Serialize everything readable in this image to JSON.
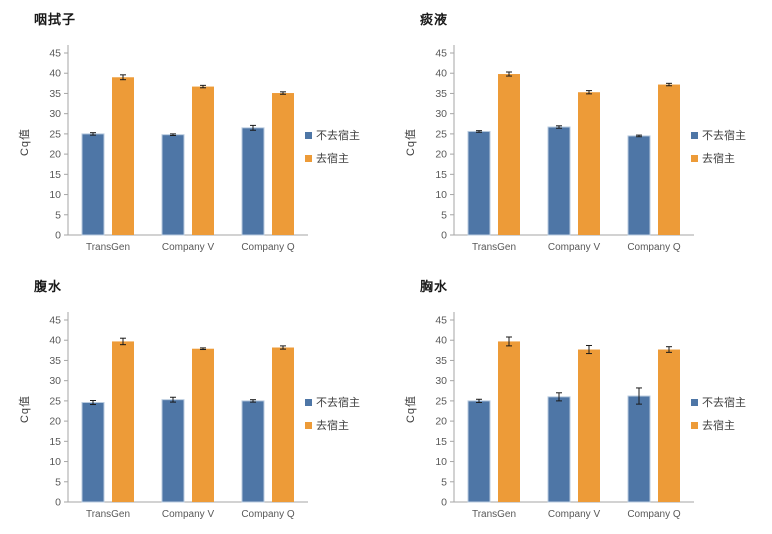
{
  "page": {
    "background": "#ffffff"
  },
  "colors": {
    "series1_fill": "#4E76A6",
    "series1_border": "#B9CBDF",
    "series2_fill": "#ED9B38",
    "axis_line": "#A6A6A6",
    "tick_text": "#595959",
    "category_text": "#595959",
    "title_text": "#1A1A1A",
    "error_bar": "#1A1A1A"
  },
  "chart_data": [
    {
      "type": "bar",
      "title": "咽拭子",
      "ylabel": "Cq值",
      "ylim": [
        0,
        45
      ],
      "ytick_step": 5,
      "grid": false,
      "legend_position": "right",
      "categories": [
        "TransGen",
        "Company V",
        "Company Q"
      ],
      "series": [
        {
          "name": "不去宿主",
          "color": "#4E76A6",
          "values": [
            25.0,
            24.8,
            26.5
          ],
          "errors": [
            0.3,
            0.2,
            0.6
          ]
        },
        {
          "name": "去宿主",
          "color": "#ED9B38",
          "values": [
            39.0,
            36.7,
            35.1
          ],
          "errors": [
            0.6,
            0.3,
            0.3
          ]
        }
      ]
    },
    {
      "type": "bar",
      "title": "痰液",
      "ylabel": "Cq值",
      "ylim": [
        0,
        45
      ],
      "ytick_step": 5,
      "grid": false,
      "legend_position": "right",
      "categories": [
        "TransGen",
        "Company V",
        "Company Q"
      ],
      "series": [
        {
          "name": "不去宿主",
          "color": "#4E76A6",
          "values": [
            25.6,
            26.7,
            24.5
          ],
          "errors": [
            0.2,
            0.3,
            0.2
          ]
        },
        {
          "name": "去宿主",
          "color": "#ED9B38",
          "values": [
            39.8,
            35.3,
            37.2
          ],
          "errors": [
            0.5,
            0.4,
            0.3
          ]
        }
      ]
    },
    {
      "type": "bar",
      "title": "腹水",
      "ylabel": "Cq值",
      "ylim": [
        0,
        45
      ],
      "ytick_step": 5,
      "grid": false,
      "legend_position": "right",
      "categories": [
        "TransGen",
        "Company V",
        "Company Q"
      ],
      "series": [
        {
          "name": "不去宿主",
          "color": "#4E76A6",
          "values": [
            24.6,
            25.3,
            25.0
          ],
          "errors": [
            0.5,
            0.6,
            0.3
          ]
        },
        {
          "name": "去宿主",
          "color": "#ED9B38",
          "values": [
            39.7,
            37.9,
            38.2
          ],
          "errors": [
            0.8,
            0.2,
            0.4
          ]
        }
      ]
    },
    {
      "type": "bar",
      "title": "胸水",
      "ylabel": "Cq值",
      "ylim": [
        0,
        45
      ],
      "ytick_step": 5,
      "grid": false,
      "legend_position": "right",
      "categories": [
        "TransGen",
        "Company V",
        "Company Q"
      ],
      "series": [
        {
          "name": "不去宿主",
          "color": "#4E76A6",
          "values": [
            25.0,
            26.0,
            26.2
          ],
          "errors": [
            0.4,
            1.0,
            2.0
          ]
        },
        {
          "name": "去宿主",
          "color": "#ED9B38",
          "values": [
            39.7,
            37.7,
            37.7
          ],
          "errors": [
            1.1,
            1.0,
            0.7
          ]
        }
      ]
    }
  ]
}
